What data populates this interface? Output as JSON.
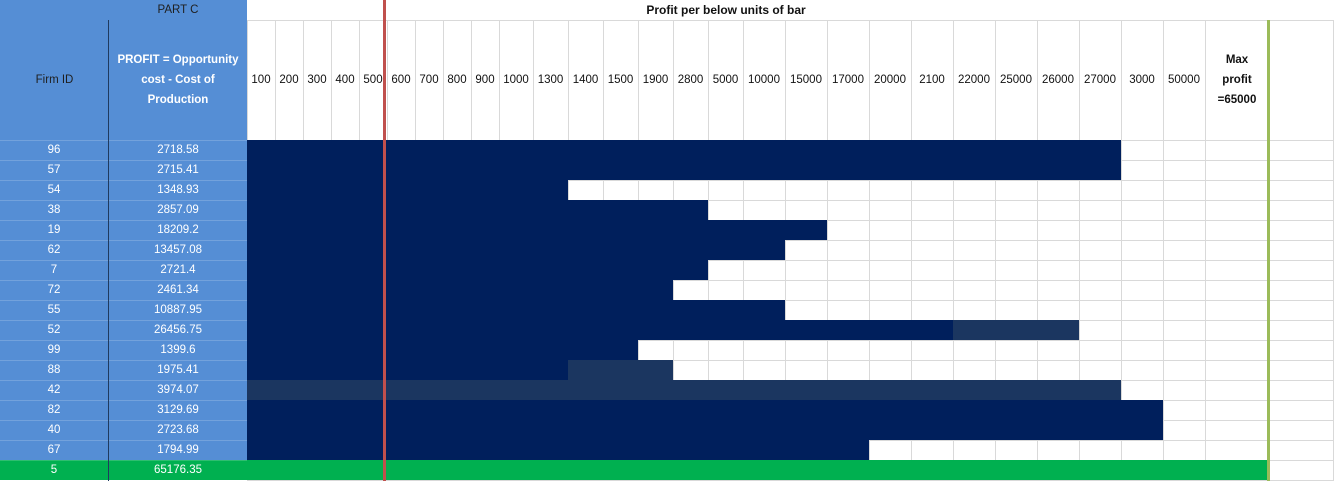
{
  "header": {
    "part_label": "PART C",
    "chart_title": "Profit per below units of bar",
    "firm_id_label": "Firm ID",
    "profit_label_line1": "PROFIT = Opportunity",
    "profit_label_line2": "cost - Cost of",
    "profit_label_line3": "Production",
    "max_label_line1": "Max",
    "max_label_line2": "profit",
    "max_label_line3": "=65000"
  },
  "columns": [
    "100",
    "200",
    "300",
    "400",
    "500",
    "600",
    "700",
    "800",
    "900",
    "1000",
    "1300",
    "1400",
    "1500",
    "1900",
    "2800",
    "5000",
    "10000",
    "15000",
    "17000",
    "20000",
    "2100",
    "22000",
    "25000",
    "26000",
    "27000",
    "3000",
    "50000"
  ],
  "rows": [
    {
      "firm_id": "96",
      "profit": "2718.58"
    },
    {
      "firm_id": "57",
      "profit": "2715.41"
    },
    {
      "firm_id": "54",
      "profit": "1348.93"
    },
    {
      "firm_id": "38",
      "profit": "2857.09"
    },
    {
      "firm_id": "19",
      "profit": "18209.2"
    },
    {
      "firm_id": "62",
      "profit": "13457.08"
    },
    {
      "firm_id": "7",
      "profit": "2721.4"
    },
    {
      "firm_id": "72",
      "profit": "2461.34"
    },
    {
      "firm_id": "55",
      "profit": "10887.95"
    },
    {
      "firm_id": "52",
      "profit": "26456.75"
    },
    {
      "firm_id": "99",
      "profit": "1399.6"
    },
    {
      "firm_id": "88",
      "profit": "1975.41"
    },
    {
      "firm_id": "42",
      "profit": "3974.07"
    },
    {
      "firm_id": "82",
      "profit": "3129.69"
    },
    {
      "firm_id": "40",
      "profit": "2723.68"
    },
    {
      "firm_id": "67",
      "profit": "1794.99"
    },
    {
      "firm_id": "5",
      "profit": "65176.35"
    }
  ],
  "colors": {
    "blue_panel": "#558ed5",
    "bar_dark": "#001f5c",
    "bar_slate": "#1b3660",
    "highlight_green": "#00b050",
    "red_line": "#c0504d",
    "green_line": "#9bbb59"
  }
}
